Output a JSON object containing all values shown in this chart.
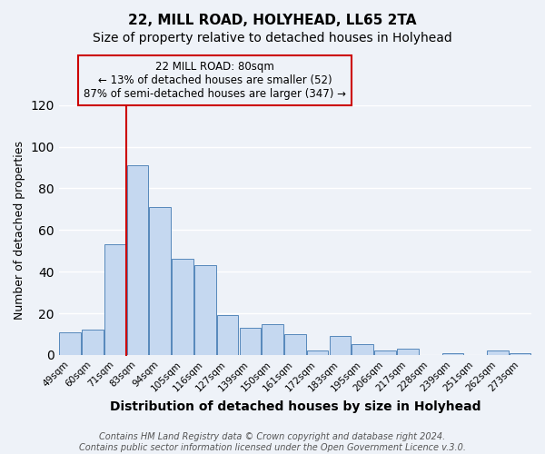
{
  "title": "22, MILL ROAD, HOLYHEAD, LL65 2TA",
  "subtitle": "Size of property relative to detached houses in Holyhead",
  "xlabel": "Distribution of detached houses by size in Holyhead",
  "ylabel": "Number of detached properties",
  "bar_labels": [
    "49sqm",
    "60sqm",
    "71sqm",
    "83sqm",
    "94sqm",
    "105sqm",
    "116sqm",
    "127sqm",
    "139sqm",
    "150sqm",
    "161sqm",
    "172sqm",
    "183sqm",
    "195sqm",
    "206sqm",
    "217sqm",
    "228sqm",
    "239sqm",
    "251sqm",
    "262sqm",
    "273sqm"
  ],
  "bar_values": [
    11,
    12,
    53,
    91,
    71,
    46,
    43,
    19,
    13,
    15,
    10,
    2,
    9,
    5,
    2,
    3,
    0,
    1,
    0,
    2,
    1
  ],
  "bar_color": "#c5d8f0",
  "bar_edge_color": "#5588bb",
  "ylim": [
    0,
    120
  ],
  "yticks": [
    0,
    20,
    40,
    60,
    80,
    100,
    120
  ],
  "annotation_line1": "22 MILL ROAD: 80sqm",
  "annotation_line2": "← 13% of detached houses are smaller (52)",
  "annotation_line3": "87% of semi-detached houses are larger (347) →",
  "footer_line1": "Contains HM Land Registry data © Crown copyright and database right 2024.",
  "footer_line2": "Contains public sector information licensed under the Open Government Licence v.3.0.",
  "bg_color": "#eef2f8",
  "plot_bg_color": "#eef2f8",
  "grid_color": "#ffffff",
  "red_line_color": "#cc0000",
  "box_edge_color": "#cc0000",
  "title_fontsize": 11,
  "subtitle_fontsize": 10,
  "ylabel_fontsize": 9,
  "xlabel_fontsize": 10,
  "tick_fontsize": 7.5,
  "ann_fontsize": 8.5,
  "footer_fontsize": 7
}
